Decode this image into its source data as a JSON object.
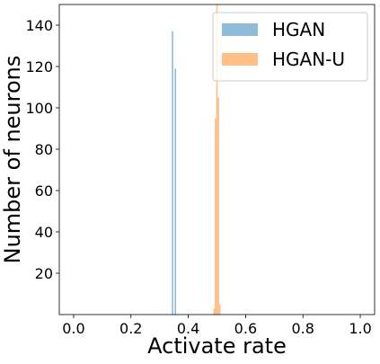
{
  "chart_data": {
    "type": "bar",
    "subtype": "histogram",
    "xlabel": "Activate rate",
    "ylabel": "Number of neurons",
    "xlim": [
      -0.05,
      1.05
    ],
    "ylim": [
      0,
      150
    ],
    "x_ticks": [
      0.0,
      0.2,
      0.4,
      0.6,
      0.8,
      1.0
    ],
    "x_tick_labels": [
      "0.0",
      "0.2",
      "0.4",
      "0.6",
      "0.8",
      "1.0"
    ],
    "y_ticks": [
      20,
      40,
      60,
      80,
      100,
      120,
      140
    ],
    "y_tick_labels": [
      "20",
      "40",
      "60",
      "80",
      "100",
      "120",
      "140"
    ],
    "grid": false,
    "legend_position": "top-right",
    "bin_width": 0.005,
    "series": [
      {
        "name": "HGAN",
        "color": "#1f77b4",
        "opacity": 0.5,
        "bins": [
          {
            "x": 0.345,
            "value": 137
          },
          {
            "x": 0.355,
            "value": 119
          }
        ]
      },
      {
        "name": "HGAN-U",
        "color": "#ff7f0e",
        "opacity": 0.5,
        "bins": [
          {
            "x": 0.49,
            "value": 3
          },
          {
            "x": 0.495,
            "value": 95
          },
          {
            "x": 0.5,
            "value": 150
          },
          {
            "x": 0.505,
            "value": 105
          },
          {
            "x": 0.51,
            "value": 5
          }
        ]
      }
    ]
  }
}
